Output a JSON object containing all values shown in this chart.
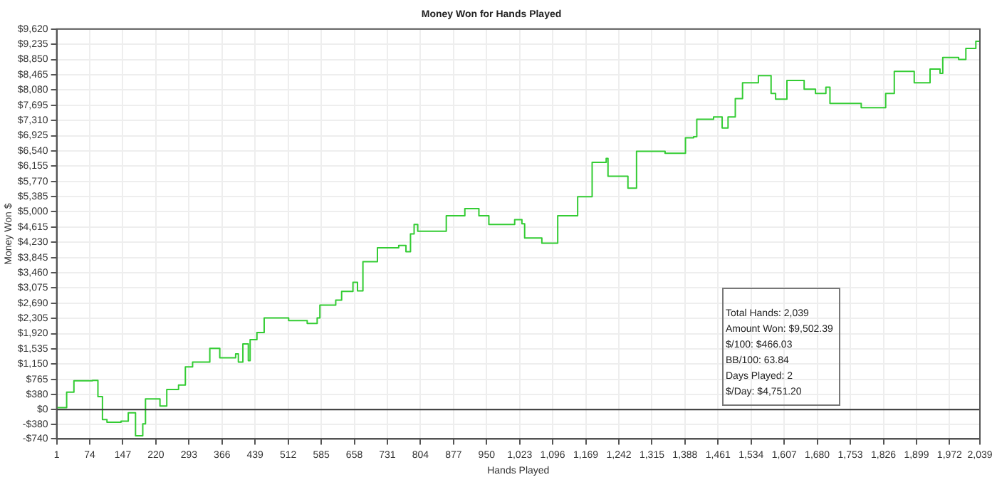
{
  "chart_data": {
    "type": "step",
    "title": "Money Won for Hands Played",
    "xlabel": "Hands Played",
    "ylabel": "Money Won $",
    "x": [
      1,
      23,
      39,
      80,
      92,
      102,
      112,
      143,
      159,
      175,
      191,
      197,
      229,
      244,
      270,
      285,
      301,
      339,
      361,
      396,
      402,
      412,
      424,
      428,
      443,
      459,
      513,
      554,
      576,
      582,
      617,
      630,
      655,
      665,
      677,
      709,
      756,
      772,
      782,
      790,
      798,
      861,
      902,
      933,
      955,
      1012,
      1028,
      1034,
      1072,
      1107,
      1151,
      1183,
      1214,
      1218,
      1256,
      1262,
      1281,
      1344,
      1389,
      1407,
      1414,
      1451,
      1470,
      1483,
      1499,
      1515,
      1550,
      1578,
      1588,
      1613,
      1651,
      1676,
      1699,
      1708,
      1777,
      1831,
      1850,
      1894,
      1929,
      1951,
      1957,
      1992,
      2008,
      2030,
      2039
    ],
    "series": [
      {
        "color": "#33cc33",
        "values": [
          50,
          440,
          730,
          740,
          330,
          -250,
          -320,
          -290,
          -80,
          -660,
          -360,
          270,
          90,
          510,
          620,
          1080,
          1200,
          1550,
          1310,
          1410,
          1200,
          1660,
          1240,
          1770,
          1950,
          2320,
          2250,
          2180,
          2320,
          2640,
          2770,
          2990,
          3220,
          3000,
          3740,
          4090,
          4150,
          3990,
          4440,
          4680,
          4510,
          4900,
          5080,
          4900,
          4680,
          4800,
          4700,
          4340,
          4210,
          4900,
          5380,
          6250,
          6350,
          5900,
          5900,
          5600,
          6530,
          6480,
          6870,
          6900,
          7340,
          7400,
          7120,
          7400,
          7860,
          8260,
          8440,
          7990,
          7850,
          8320,
          8100,
          7990,
          8150,
          7740,
          7630,
          7990,
          8550,
          8260,
          8610,
          8500,
          8900,
          8850,
          9130,
          9310,
          9500
        ]
      }
    ],
    "xlim": [
      1,
      2039
    ],
    "xticks": [
      1,
      74,
      147,
      220,
      293,
      366,
      439,
      512,
      585,
      658,
      731,
      804,
      877,
      950,
      {
        "value": 1023,
        "label": "1,023"
      },
      {
        "value": 1096,
        "label": "1,096"
      },
      {
        "value": 1169,
        "label": "1,169"
      },
      {
        "value": 1242,
        "label": "1,242"
      },
      {
        "value": 1315,
        "label": "1,315"
      },
      {
        "value": 1388,
        "label": "1,388"
      },
      {
        "value": 1461,
        "label": "1,461"
      },
      {
        "value": 1534,
        "label": "1,534"
      },
      {
        "value": 1607,
        "label": "1,607"
      },
      {
        "value": 1680,
        "label": "1,680"
      },
      {
        "value": 1753,
        "label": "1,753"
      },
      {
        "value": 1826,
        "label": "1,826"
      },
      {
        "value": 1899,
        "label": "1,899"
      },
      {
        "value": 1972,
        "label": "1,972"
      },
      {
        "value": 2039,
        "label": "2,039"
      }
    ],
    "ylim": [
      -740,
      9620
    ],
    "yticks": [
      {
        "value": -740,
        "label": "-$740"
      },
      {
        "value": -380,
        "label": "-$380"
      },
      {
        "value": 0,
        "label": "$0"
      },
      {
        "value": 380,
        "label": "$380"
      },
      {
        "value": 765,
        "label": "$765"
      },
      {
        "value": 1150,
        "label": "$1,150"
      },
      {
        "value": 1535,
        "label": "$1,535"
      },
      {
        "value": 1920,
        "label": "$1,920"
      },
      {
        "value": 2305,
        "label": "$2,305"
      },
      {
        "value": 2690,
        "label": "$2,690"
      },
      {
        "value": 3075,
        "label": "$3,075"
      },
      {
        "value": 3460,
        "label": "$3,460"
      },
      {
        "value": 3845,
        "label": "$3,845"
      },
      {
        "value": 4230,
        "label": "$4,230"
      },
      {
        "value": 4615,
        "label": "$4,615"
      },
      {
        "value": 5000,
        "label": "$5,000"
      },
      {
        "value": 5385,
        "label": "$5,385"
      },
      {
        "value": 5770,
        "label": "$5,770"
      },
      {
        "value": 6155,
        "label": "$6,155"
      },
      {
        "value": 6540,
        "label": "$6,540"
      },
      {
        "value": 6925,
        "label": "$6,925"
      },
      {
        "value": 7310,
        "label": "$7,310"
      },
      {
        "value": 7695,
        "label": "$7,695"
      },
      {
        "value": 8080,
        "label": "$8,080"
      },
      {
        "value": 8465,
        "label": "$8,465"
      },
      {
        "value": 8850,
        "label": "$8,850"
      },
      {
        "value": 9235,
        "label": "$9,235"
      },
      {
        "value": 9620,
        "label": "$9,620"
      }
    ],
    "ref_lines": [
      {
        "axis": "y",
        "value": 0,
        "color": "#333333"
      }
    ],
    "annotations": [
      "Total Hands: 2,039",
      "Amount Won: $9,502.39",
      "$/100: $466.03",
      "BB/100: 63.84",
      "Days Played: 2",
      "$/Day: $4,751.20"
    ],
    "grid": true,
    "legend": false,
    "marker": "none",
    "line_style": "solid"
  }
}
